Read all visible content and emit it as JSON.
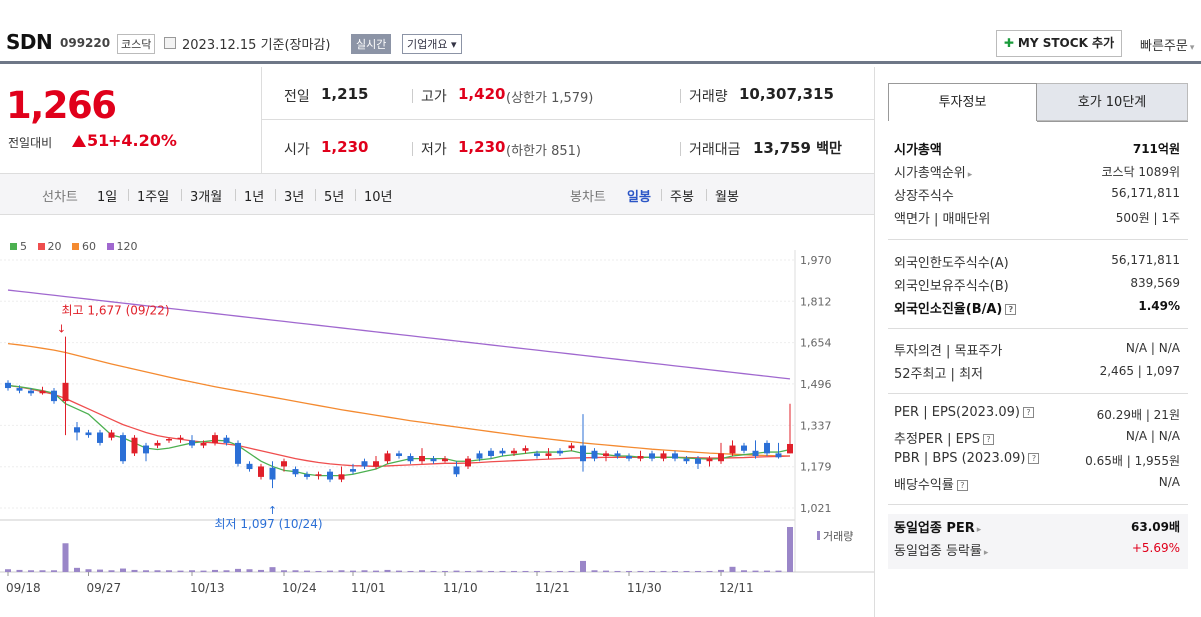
{
  "header": {
    "name": "SDN",
    "code": "099220",
    "market": "코스닥",
    "date": "2023.12.15 기준(장마감)",
    "realtime": "실시간",
    "company": "기업개요 ▾",
    "mystock": "MY STOCK 추가",
    "quick": "빠른주문"
  },
  "price": {
    "current": "1,266",
    "change_label": "전일대비",
    "change": "51",
    "change_pct": "+4.20%"
  },
  "quote": {
    "prev_label": "전일",
    "prev": "1,215",
    "high_label": "고가",
    "high": "1,420",
    "upper_limit": "(상한가 1,579)",
    "volume_label": "거래량",
    "volume": "10,307,315",
    "open_label": "시가",
    "open": "1,230",
    "low_label": "저가",
    "low": "1,230",
    "lower_limit": "(하한가 851)",
    "amount_label": "거래대금",
    "amount": "13,759",
    "amount_unit": "백만"
  },
  "toolbar": {
    "line_label": "선차트",
    "periods": [
      "1일",
      "1주일",
      "3개월",
      "1년",
      "3년",
      "5년",
      "10년"
    ],
    "candle_label": "봉차트",
    "candle_types": [
      "일봉",
      "주봉",
      "월봉"
    ]
  },
  "legend": [
    {
      "label": "5",
      "color": "#4cb050"
    },
    {
      "label": "20",
      "color": "#ef4e4e"
    },
    {
      "label": "60",
      "color": "#f48a30"
    },
    {
      "label": "120",
      "color": "#a068cf"
    }
  ],
  "chart_data": {
    "type": "candlestick",
    "y_ticks": [
      "1,970",
      "1,812",
      "1,654",
      "1,496",
      "1,337",
      "1,179",
      "1,021"
    ],
    "ylim": [
      1021,
      1970
    ],
    "x_ticks": [
      "09/18",
      "09/27",
      "10/13",
      "10/24",
      "11/01",
      "11/10",
      "11/21",
      "11/30",
      "12/11"
    ],
    "high_annotation": "최고 1,677 (09/22)",
    "low_annotation": "최저 1,097 (10/24)",
    "volume_label": "거래량",
    "candles": [
      [
        1500,
        1480,
        1510,
        1470
      ],
      [
        1480,
        1470,
        1490,
        1460
      ],
      [
        1470,
        1460,
        1480,
        1450
      ],
      [
        1460,
        1470,
        1485,
        1455
      ],
      [
        1470,
        1430,
        1480,
        1420
      ],
      [
        1430,
        1500,
        1677,
        1300
      ],
      [
        1330,
        1310,
        1350,
        1280
      ],
      [
        1310,
        1300,
        1320,
        1290
      ],
      [
        1310,
        1270,
        1320,
        1260
      ],
      [
        1290,
        1310,
        1320,
        1280
      ],
      [
        1300,
        1200,
        1310,
        1190
      ],
      [
        1230,
        1290,
        1300,
        1220
      ],
      [
        1260,
        1230,
        1270,
        1200
      ],
      [
        1260,
        1270,
        1280,
        1250
      ],
      [
        1280,
        1285,
        1290,
        1270
      ],
      [
        1285,
        1290,
        1300,
        1270
      ],
      [
        1280,
        1260,
        1300,
        1250
      ],
      [
        1260,
        1270,
        1280,
        1250
      ],
      [
        1270,
        1300,
        1310,
        1260
      ],
      [
        1290,
        1270,
        1300,
        1260
      ],
      [
        1270,
        1190,
        1280,
        1180
      ],
      [
        1190,
        1170,
        1200,
        1160
      ],
      [
        1140,
        1180,
        1190,
        1130
      ],
      [
        1175,
        1130,
        1200,
        1097
      ],
      [
        1180,
        1200,
        1210,
        1160
      ],
      [
        1170,
        1150,
        1180,
        1140
      ],
      [
        1150,
        1140,
        1160,
        1130
      ],
      [
        1145,
        1150,
        1160,
        1130
      ],
      [
        1160,
        1130,
        1170,
        1120
      ],
      [
        1130,
        1150,
        1180,
        1120
      ],
      [
        1170,
        1160,
        1190,
        1150
      ],
      [
        1200,
        1180,
        1210,
        1170
      ],
      [
        1180,
        1200,
        1220,
        1170
      ],
      [
        1200,
        1230,
        1240,
        1190
      ],
      [
        1230,
        1220,
        1240,
        1210
      ],
      [
        1220,
        1200,
        1230,
        1190
      ],
      [
        1200,
        1220,
        1250,
        1190
      ],
      [
        1210,
        1200,
        1220,
        1190
      ],
      [
        1200,
        1210,
        1220,
        1195
      ],
      [
        1180,
        1150,
        1200,
        1140
      ],
      [
        1180,
        1210,
        1220,
        1170
      ],
      [
        1230,
        1210,
        1240,
        1200
      ],
      [
        1240,
        1220,
        1250,
        1210
      ],
      [
        1240,
        1230,
        1250,
        1220
      ],
      [
        1230,
        1240,
        1250,
        1220
      ],
      [
        1240,
        1250,
        1260,
        1230
      ],
      [
        1230,
        1220,
        1240,
        1210
      ],
      [
        1220,
        1230,
        1250,
        1210
      ],
      [
        1240,
        1230,
        1250,
        1220
      ],
      [
        1250,
        1260,
        1270,
        1240
      ],
      [
        1260,
        1200,
        1380,
        1160
      ],
      [
        1240,
        1210,
        1250,
        1200
      ],
      [
        1220,
        1230,
        1240,
        1200
      ],
      [
        1230,
        1220,
        1240,
        1210
      ],
      [
        1220,
        1210,
        1230,
        1200
      ],
      [
        1210,
        1220,
        1240,
        1200
      ],
      [
        1230,
        1210,
        1240,
        1200
      ],
      [
        1210,
        1230,
        1240,
        1200
      ],
      [
        1230,
        1210,
        1240,
        1200
      ],
      [
        1210,
        1200,
        1220,
        1190
      ],
      [
        1210,
        1190,
        1220,
        1170
      ],
      [
        1200,
        1210,
        1220,
        1180
      ],
      [
        1200,
        1230,
        1270,
        1190
      ],
      [
        1230,
        1260,
        1280,
        1220
      ],
      [
        1260,
        1240,
        1270,
        1230
      ],
      [
        1240,
        1220,
        1280,
        1210
      ],
      [
        1270,
        1230,
        1280,
        1220
      ],
      [
        1230,
        1215,
        1270,
        1210
      ],
      [
        1230,
        1266,
        1420,
        1230
      ]
    ],
    "ma5": [
      1490,
      1485,
      1478,
      1470,
      1460,
      1420,
      1400,
      1380,
      1340,
      1300,
      1290,
      1270,
      1250,
      1245,
      1250,
      1260,
      1270,
      1275,
      1280,
      1278,
      1260,
      1230,
      1200,
      1180,
      1165,
      1160,
      1150,
      1145,
      1145,
      1145,
      1150,
      1160,
      1170,
      1190,
      1200,
      1210,
      1210,
      1210,
      1210,
      1200,
      1200,
      1205,
      1210,
      1220,
      1225,
      1230,
      1235,
      1235,
      1235,
      1240,
      1230,
      1230,
      1225,
      1220,
      1220,
      1215,
      1215,
      1215,
      1215,
      1212,
      1210,
      1208,
      1210,
      1220,
      1225,
      1230,
      1235,
      1235,
      1245
    ],
    "ma20": [
      1490,
      1484,
      1476,
      1466,
      1456,
      1440,
      1420,
      1400,
      1380,
      1360,
      1340,
      1325,
      1310,
      1298,
      1290,
      1284,
      1278,
      1273,
      1270,
      1266,
      1260,
      1250,
      1240,
      1230,
      1220,
      1210,
      1202,
      1195,
      1190,
      1186,
      1183,
      1182,
      1180,
      1182,
      1184,
      1186,
      1188,
      1190,
      1192,
      1192,
      1193,
      1195,
      1198,
      1200,
      1202,
      1204,
      1206,
      1208,
      1210,
      1212,
      1213,
      1214,
      1215,
      1215,
      1215,
      1215,
      1215,
      1215,
      1215,
      1214,
      1213,
      1212,
      1212,
      1213,
      1214,
      1216,
      1217,
      1218,
      1220
    ],
    "ma60": [
      1650,
      1645,
      1639,
      1632,
      1625,
      1616,
      1605,
      1594,
      1583,
      1572,
      1562,
      1552,
      1542,
      1532,
      1522,
      1512,
      1503,
      1494,
      1485,
      1477,
      1469,
      1461,
      1453,
      1445,
      1437,
      1429,
      1421,
      1413,
      1405,
      1397,
      1390,
      1383,
      1376,
      1369,
      1362,
      1355,
      1349,
      1343,
      1337,
      1331,
      1325,
      1319,
      1313,
      1307,
      1301,
      1295,
      1290,
      1285,
      1280,
      1275,
      1270,
      1266,
      1262,
      1258,
      1254,
      1250,
      1246,
      1243,
      1240,
      1237,
      1234,
      1231,
      1229,
      1227,
      1225,
      1223,
      1222,
      1221,
      1220
    ],
    "ma120": [
      1855,
      1850,
      1845,
      1840,
      1835,
      1830,
      1825,
      1820,
      1815,
      1810,
      1805,
      1800,
      1795,
      1790,
      1785,
      1780,
      1775,
      1770,
      1765,
      1760,
      1755,
      1750,
      1745,
      1740,
      1735,
      1730,
      1725,
      1720,
      1715,
      1710,
      1705,
      1700,
      1695,
      1690,
      1685,
      1680,
      1675,
      1670,
      1665,
      1660,
      1655,
      1650,
      1645,
      1640,
      1635,
      1630,
      1625,
      1620,
      1615,
      1610,
      1605,
      1600,
      1595,
      1590,
      1585,
      1580,
      1575,
      1570,
      1565,
      1560,
      1555,
      1550,
      1545,
      1540,
      1535,
      1530,
      1525,
      1520,
      1515
    ],
    "volume": [
      0.8,
      0.6,
      0.5,
      0.5,
      0.5,
      8.3,
      1.2,
      0.8,
      0.7,
      0.5,
      1.0,
      0.6,
      0.5,
      0.5,
      0.5,
      0.4,
      0.5,
      0.4,
      0.6,
      0.5,
      0.9,
      0.8,
      0.6,
      1.4,
      0.5,
      0.5,
      0.4,
      0.3,
      0.4,
      0.5,
      0.4,
      0.5,
      0.4,
      0.6,
      0.4,
      0.3,
      0.5,
      0.3,
      0.3,
      0.4,
      0.3,
      0.4,
      0.3,
      0.3,
      0.3,
      0.3,
      0.3,
      0.3,
      0.3,
      0.3,
      3.2,
      0.5,
      0.4,
      0.3,
      0.3,
      0.3,
      0.3,
      0.3,
      0.3,
      0.3,
      0.3,
      0.3,
      0.6,
      1.5,
      0.5,
      0.4,
      0.4,
      0.4,
      13.0
    ]
  },
  "invest": {
    "tab1": "투자정보",
    "tab2": "호가 10단계",
    "rows1": [
      {
        "label": "시가총액",
        "value": "711억원",
        "bold": true
      },
      {
        "label": "시가총액순위",
        "value": "코스닥 1089위",
        "arrow": true
      },
      {
        "label": "상장주식수",
        "value": "56,171,811"
      },
      {
        "label": "액면가 | 매매단위",
        "value": "500원 | 1주"
      }
    ],
    "rows2": [
      {
        "label": "외국인한도주식수(A)",
        "value": "56,171,811"
      },
      {
        "label": "외국인보유주식수(B)",
        "value": "839,569"
      },
      {
        "label": "외국인소진율(B/A)",
        "value": "1.49%",
        "bold": true,
        "help": true
      }
    ],
    "rows3": [
      {
        "label": "투자의견 | 목표주가",
        "value": "N/A | N/A"
      },
      {
        "label": "52주최고 | 최저",
        "value": "2,465 | 1,097"
      }
    ],
    "rows4": [
      {
        "label": "PER | EPS(2023.09)",
        "value": "60.29배 | 21원",
        "help": true
      },
      {
        "label": "추정PER | EPS",
        "value": "N/A | N/A",
        "help": true
      },
      {
        "label": "PBR | BPS (2023.09)",
        "value": "0.65배 | 1,955원",
        "help": true
      },
      {
        "label": "배당수익률",
        "value": "N/A",
        "help": true
      }
    ],
    "rows5": [
      {
        "label": "동일업종 PER",
        "value": "63.09배",
        "bold": true,
        "arrow": true
      },
      {
        "label": "동일업종 등락률",
        "value": "+5.69%",
        "red": true,
        "arrow": true
      }
    ]
  }
}
